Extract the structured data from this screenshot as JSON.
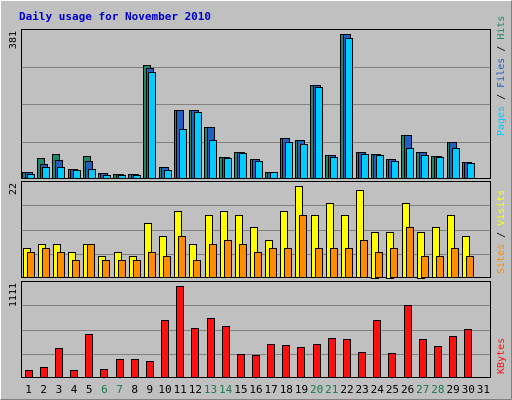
{
  "chart_data": {
    "type": "bar",
    "title": "Daily usage for November 2010",
    "days": [
      {
        "d": "1",
        "weekend": false
      },
      {
        "d": "2",
        "weekend": false
      },
      {
        "d": "3",
        "weekend": false
      },
      {
        "d": "4",
        "weekend": false
      },
      {
        "d": "5",
        "weekend": false
      },
      {
        "d": "6",
        "weekend": true
      },
      {
        "d": "7",
        "weekend": true
      },
      {
        "d": "8",
        "weekend": false
      },
      {
        "d": "9",
        "weekend": false
      },
      {
        "d": "10",
        "weekend": false
      },
      {
        "d": "11",
        "weekend": false
      },
      {
        "d": "12",
        "weekend": false
      },
      {
        "d": "13",
        "weekend": true
      },
      {
        "d": "14",
        "weekend": true
      },
      {
        "d": "15",
        "weekend": false
      },
      {
        "d": "16",
        "weekend": false
      },
      {
        "d": "17",
        "weekend": false
      },
      {
        "d": "18",
        "weekend": false
      },
      {
        "d": "19",
        "weekend": false
      },
      {
        "d": "20",
        "weekend": true
      },
      {
        "d": "21",
        "weekend": true
      },
      {
        "d": "22",
        "weekend": false
      },
      {
        "d": "23",
        "weekend": false
      },
      {
        "d": "24",
        "weekend": false
      },
      {
        "d": "25",
        "weekend": false
      },
      {
        "d": "26",
        "weekend": false
      },
      {
        "d": "27",
        "weekend": true
      },
      {
        "d": "28",
        "weekend": true
      },
      {
        "d": "29",
        "weekend": false
      },
      {
        "d": "30",
        "weekend": false
      },
      {
        "d": "31",
        "weekend": false
      }
    ],
    "panels": [
      {
        "max_label": "381",
        "ymax": 381,
        "series": [
          {
            "name": "Hits",
            "color": "#1a8a6a",
            "values": [
              16,
              52,
              64,
              25,
              58,
              13,
              11,
              10,
              300,
              30,
              180,
              180,
              134,
              56,
              68,
              50,
              17,
              106,
              101,
              245,
              60,
              380,
              70,
              63,
              50,
              113,
              70,
              58,
              95,
              42,
              null
            ]
          },
          {
            "name": "Files",
            "color": "#2060c0",
            "values": [
              16,
              36,
              48,
              25,
              45,
              13,
              11,
              10,
              290,
              30,
              180,
              180,
              134,
              56,
              68,
              50,
              17,
              106,
              101,
              245,
              60,
              380,
              70,
              63,
              50,
              113,
              70,
              58,
              95,
              42,
              null
            ]
          },
          {
            "name": "Pages",
            "color": "#00ccff",
            "values": [
              10,
              28,
              30,
              20,
              25,
              8,
              8,
              8,
              280,
              20,
              130,
              175,
              100,
              54,
              66,
              45,
              15,
              95,
              90,
              240,
              55,
              370,
              63,
              60,
              45,
              80,
              60,
              55,
              80,
              40,
              null
            ]
          }
        ],
        "labels_order": [
          "Pages",
          "Files",
          "Hits"
        ],
        "labels_sep": " / "
      },
      {
        "max_label": "22",
        "ymax": 22,
        "series": [
          {
            "name": "Visits",
            "color": "#ffff00",
            "values": [
              7,
              8,
              8,
              6,
              8,
              5,
              6,
              5,
              13,
              10,
              16,
              8,
              15,
              16,
              15,
              12,
              9,
              16,
              22,
              15,
              18,
              15,
              21,
              11,
              11,
              18,
              11,
              12,
              15,
              10,
              null
            ]
          },
          {
            "name": "Sites",
            "color": "#ff8c00",
            "values": [
              6,
              7,
              6,
              4,
              8,
              4,
              4,
              4,
              6,
              5,
              10,
              4,
              8,
              9,
              8,
              6,
              7,
              7,
              15,
              7,
              7,
              7,
              9,
              6,
              7,
              12,
              5,
              5,
              7,
              5,
              null
            ]
          }
        ],
        "labels_order": [
          "Sites",
          "Visits"
        ],
        "labels_sep": " / "
      },
      {
        "max_label": "1111",
        "ymax": 1111,
        "series": [
          {
            "name": "KBytes",
            "color": "#ff1010",
            "values": [
              80,
              120,
              360,
              90,
              520,
              100,
              220,
              220,
              200,
              690,
              1110,
              600,
              720,
              620,
              280,
              270,
              400,
              390,
              370,
              400,
              480,
              460,
              300,
              690,
              290,
              880,
              460,
              380,
              500,
              590,
              null
            ]
          }
        ],
        "labels_order": [
          "KBytes"
        ],
        "labels_sep": ""
      }
    ]
  }
}
